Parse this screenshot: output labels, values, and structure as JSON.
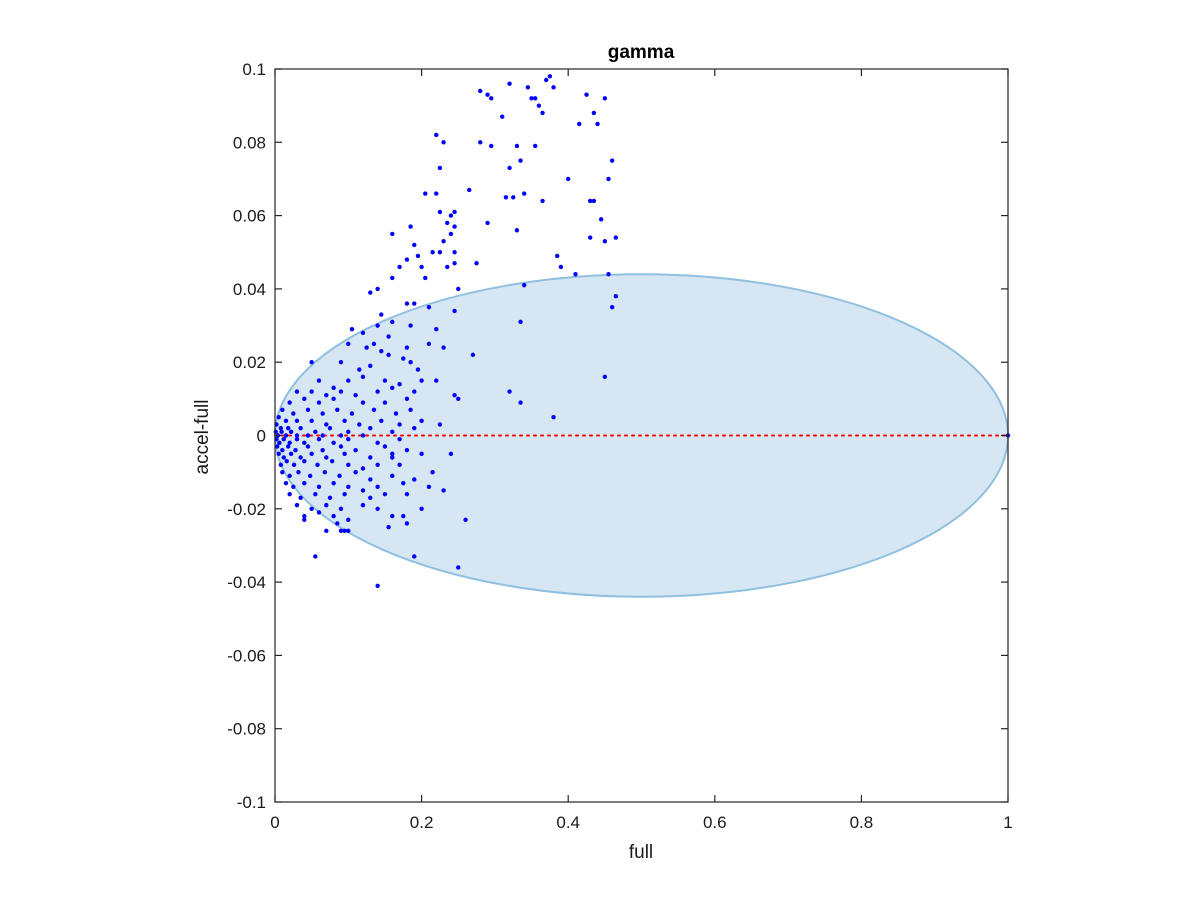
{
  "chart_data": {
    "type": "scatter",
    "title": "gamma",
    "xlabel": "full",
    "ylabel": "accel-full",
    "xlim": [
      0,
      1
    ],
    "ylim": [
      -0.1,
      0.1
    ],
    "x_ticks": [
      0,
      0.2,
      0.4,
      0.6,
      0.8,
      1
    ],
    "x_tick_labels": [
      "0",
      "0.2",
      "0.4",
      "0.6",
      "0.8",
      "1"
    ],
    "y_ticks": [
      -0.1,
      -0.08,
      -0.06,
      -0.04,
      -0.02,
      0,
      0.02,
      0.04,
      0.06,
      0.08,
      0.1
    ],
    "y_tick_labels": [
      "-0.1",
      "-0.08",
      "-0.06",
      "-0.04",
      "-0.02",
      "0",
      "0.02",
      "0.04",
      "0.06",
      "0.08",
      "0.1"
    ],
    "grid": false,
    "point_color": "#0000ff",
    "reference_line": {
      "y": 0,
      "x_range": [
        0,
        1
      ],
      "style": "dotted",
      "color": "#ff0000"
    },
    "ellipse": {
      "center_x": 0.5,
      "center_y": 0,
      "radius_x": 0.5,
      "radius_y": 0.044,
      "fill": "#d6e6f3",
      "stroke": "#8fc0e0"
    },
    "points": [
      [
        0.28,
        0.094
      ],
      [
        0.29,
        0.093
      ],
      [
        0.295,
        0.092
      ],
      [
        0.32,
        0.096
      ],
      [
        0.35,
        0.092
      ],
      [
        0.355,
        0.092
      ],
      [
        0.37,
        0.097
      ],
      [
        0.375,
        0.098
      ],
      [
        0.38,
        0.095
      ],
      [
        0.425,
        0.093
      ],
      [
        0.45,
        0.092
      ],
      [
        0.345,
        0.095
      ],
      [
        0.31,
        0.087
      ],
      [
        0.365,
        0.088
      ],
      [
        0.415,
        0.085
      ],
      [
        0.435,
        0.088
      ],
      [
        0.44,
        0.085
      ],
      [
        0.36,
        0.09
      ],
      [
        0.22,
        0.082
      ],
      [
        0.23,
        0.08
      ],
      [
        0.28,
        0.08
      ],
      [
        0.295,
        0.079
      ],
      [
        0.33,
        0.079
      ],
      [
        0.355,
        0.079
      ],
      [
        0.46,
        0.075
      ],
      [
        0.225,
        0.073
      ],
      [
        0.32,
        0.073
      ],
      [
        0.335,
        0.075
      ],
      [
        0.4,
        0.07
      ],
      [
        0.455,
        0.07
      ],
      [
        0.205,
        0.066
      ],
      [
        0.22,
        0.066
      ],
      [
        0.265,
        0.067
      ],
      [
        0.315,
        0.065
      ],
      [
        0.325,
        0.065
      ],
      [
        0.34,
        0.066
      ],
      [
        0.365,
        0.064
      ],
      [
        0.43,
        0.064
      ],
      [
        0.435,
        0.064
      ],
      [
        0.225,
        0.061
      ],
      [
        0.235,
        0.058
      ],
      [
        0.24,
        0.06
      ],
      [
        0.245,
        0.061
      ],
      [
        0.29,
        0.058
      ],
      [
        0.445,
        0.059
      ],
      [
        0.23,
        0.053
      ],
      [
        0.24,
        0.055
      ],
      [
        0.245,
        0.057
      ],
      [
        0.33,
        0.056
      ],
      [
        0.16,
        0.055
      ],
      [
        0.185,
        0.057
      ],
      [
        0.225,
        0.05
      ],
      [
        0.43,
        0.054
      ],
      [
        0.45,
        0.053
      ],
      [
        0.465,
        0.054
      ],
      [
        0.18,
        0.048
      ],
      [
        0.195,
        0.049
      ],
      [
        0.215,
        0.05
      ],
      [
        0.245,
        0.05
      ],
      [
        0.385,
        0.049
      ],
      [
        0.39,
        0.046
      ],
      [
        0.19,
        0.052
      ],
      [
        0.17,
        0.046
      ],
      [
        0.2,
        0.046
      ],
      [
        0.235,
        0.046
      ],
      [
        0.245,
        0.047
      ],
      [
        0.275,
        0.047
      ],
      [
        0.41,
        0.044
      ],
      [
        0.455,
        0.044
      ],
      [
        0.14,
        0.04
      ],
      [
        0.16,
        0.043
      ],
      [
        0.205,
        0.043
      ],
      [
        0.25,
        0.04
      ],
      [
        0.34,
        0.041
      ],
      [
        0.465,
        0.038
      ],
      [
        0.13,
        0.039
      ],
      [
        0.18,
        0.036
      ],
      [
        0.19,
        0.036
      ],
      [
        0.21,
        0.035
      ],
      [
        0.245,
        0.034
      ],
      [
        0.46,
        0.035
      ],
      [
        0.145,
        0.033
      ],
      [
        0.105,
        0.029
      ],
      [
        0.12,
        0.028
      ],
      [
        0.14,
        0.03
      ],
      [
        0.155,
        0.027
      ],
      [
        0.16,
        0.031
      ],
      [
        0.185,
        0.03
      ],
      [
        0.335,
        0.031
      ],
      [
        0.22,
        0.029
      ],
      [
        0.1,
        0.025
      ],
      [
        0.125,
        0.024
      ],
      [
        0.135,
        0.025
      ],
      [
        0.145,
        0.023
      ],
      [
        0.155,
        0.022
      ],
      [
        0.18,
        0.024
      ],
      [
        0.21,
        0.025
      ],
      [
        0.23,
        0.024
      ],
      [
        0.05,
        0.02
      ],
      [
        0.09,
        0.02
      ],
      [
        0.115,
        0.018
      ],
      [
        0.13,
        0.019
      ],
      [
        0.175,
        0.021
      ],
      [
        0.185,
        0.02
      ],
      [
        0.27,
        0.022
      ],
      [
        0.195,
        0.018
      ],
      [
        0.06,
        0.015
      ],
      [
        0.08,
        0.013
      ],
      [
        0.1,
        0.015
      ],
      [
        0.12,
        0.016
      ],
      [
        0.15,
        0.015
      ],
      [
        0.17,
        0.014
      ],
      [
        0.2,
        0.015
      ],
      [
        0.22,
        0.015
      ],
      [
        0.45,
        0.016
      ],
      [
        0.03,
        0.012
      ],
      [
        0.05,
        0.012
      ],
      [
        0.07,
        0.011
      ],
      [
        0.09,
        0.012
      ],
      [
        0.11,
        0.011
      ],
      [
        0.14,
        0.012
      ],
      [
        0.16,
        0.013
      ],
      [
        0.19,
        0.012
      ],
      [
        0.32,
        0.012
      ],
      [
        0.245,
        0.011
      ],
      [
        0.02,
        0.009
      ],
      [
        0.04,
        0.01
      ],
      [
        0.06,
        0.009
      ],
      [
        0.08,
        0.01
      ],
      [
        0.12,
        0.009
      ],
      [
        0.15,
        0.009
      ],
      [
        0.18,
        0.01
      ],
      [
        0.335,
        0.009
      ],
      [
        0.25,
        0.01
      ],
      [
        0.01,
        0.007
      ],
      [
        0.025,
        0.006
      ],
      [
        0.045,
        0.007
      ],
      [
        0.065,
        0.006
      ],
      [
        0.085,
        0.007
      ],
      [
        0.105,
        0.006
      ],
      [
        0.135,
        0.007
      ],
      [
        0.165,
        0.006
      ],
      [
        0.185,
        0.007
      ],
      [
        0.38,
        0.005
      ],
      [
        0.2,
        0.004
      ],
      [
        0.005,
        0.005
      ],
      [
        0.015,
        0.004
      ],
      [
        0.03,
        0.004
      ],
      [
        0.05,
        0.004
      ],
      [
        0.07,
        0.003
      ],
      [
        0.095,
        0.004
      ],
      [
        0.115,
        0.003
      ],
      [
        0.145,
        0.004
      ],
      [
        0.17,
        0.003
      ],
      [
        0.225,
        0.003
      ],
      [
        0.002,
        0.003
      ],
      [
        0.008,
        0.002
      ],
      [
        0.018,
        0.002
      ],
      [
        0.035,
        0.002
      ],
      [
        0.055,
        0.001
      ],
      [
        0.075,
        0.002
      ],
      [
        0.1,
        0.001
      ],
      [
        0.13,
        0.002
      ],
      [
        0.16,
        0.001
      ],
      [
        0.19,
        0.002
      ],
      [
        0.001,
        0.001
      ],
      [
        0.004,
        0.0
      ],
      [
        0.009,
        0.001
      ],
      [
        0.015,
        0.0
      ],
      [
        0.022,
        0.001
      ],
      [
        0.03,
        0.0
      ],
      [
        0.045,
        0.0
      ],
      [
        0.065,
        0.0
      ],
      [
        0.09,
        0.0
      ],
      [
        0.12,
        0.0
      ],
      [
        1.0,
        0.0
      ],
      [
        0.002,
        -0.001
      ],
      [
        0.006,
        -0.002
      ],
      [
        0.012,
        -0.001
      ],
      [
        0.02,
        -0.002
      ],
      [
        0.03,
        -0.001
      ],
      [
        0.04,
        -0.002
      ],
      [
        0.06,
        -0.001
      ],
      [
        0.08,
        -0.002
      ],
      [
        0.1,
        -0.001
      ],
      [
        0.14,
        -0.002
      ],
      [
        0.17,
        -0.001
      ],
      [
        0.003,
        -0.003
      ],
      [
        0.01,
        -0.004
      ],
      [
        0.018,
        -0.003
      ],
      [
        0.028,
        -0.004
      ],
      [
        0.045,
        -0.003
      ],
      [
        0.065,
        -0.004
      ],
      [
        0.09,
        -0.003
      ],
      [
        0.11,
        -0.004
      ],
      [
        0.15,
        -0.003
      ],
      [
        0.18,
        -0.004
      ],
      [
        0.005,
        -0.005
      ],
      [
        0.012,
        -0.006
      ],
      [
        0.022,
        -0.005
      ],
      [
        0.035,
        -0.006
      ],
      [
        0.05,
        -0.005
      ],
      [
        0.07,
        -0.006
      ],
      [
        0.095,
        -0.005
      ],
      [
        0.13,
        -0.006
      ],
      [
        0.16,
        -0.005
      ],
      [
        0.2,
        -0.005
      ],
      [
        0.24,
        -0.005
      ],
      [
        0.008,
        -0.008
      ],
      [
        0.016,
        -0.007
      ],
      [
        0.026,
        -0.008
      ],
      [
        0.04,
        -0.007
      ],
      [
        0.058,
        -0.008
      ],
      [
        0.078,
        -0.007
      ],
      [
        0.1,
        -0.008
      ],
      [
        0.12,
        -0.009
      ],
      [
        0.14,
        -0.008
      ],
      [
        0.17,
        -0.008
      ],
      [
        0.01,
        -0.01
      ],
      [
        0.02,
        -0.011
      ],
      [
        0.032,
        -0.01
      ],
      [
        0.048,
        -0.011
      ],
      [
        0.068,
        -0.01
      ],
      [
        0.088,
        -0.011
      ],
      [
        0.11,
        -0.01
      ],
      [
        0.13,
        -0.012
      ],
      [
        0.16,
        -0.011
      ],
      [
        0.19,
        -0.012
      ],
      [
        0.015,
        -0.013
      ],
      [
        0.025,
        -0.014
      ],
      [
        0.04,
        -0.013
      ],
      [
        0.06,
        -0.014
      ],
      [
        0.08,
        -0.013
      ],
      [
        0.1,
        -0.014
      ],
      [
        0.12,
        -0.015
      ],
      [
        0.14,
        -0.014
      ],
      [
        0.175,
        -0.013
      ],
      [
        0.21,
        -0.014
      ],
      [
        0.02,
        -0.016
      ],
      [
        0.035,
        -0.017
      ],
      [
        0.055,
        -0.016
      ],
      [
        0.075,
        -0.017
      ],
      [
        0.095,
        -0.016
      ],
      [
        0.13,
        -0.017
      ],
      [
        0.15,
        -0.016
      ],
      [
        0.18,
        -0.016
      ],
      [
        0.03,
        -0.019
      ],
      [
        0.05,
        -0.02
      ],
      [
        0.07,
        -0.019
      ],
      [
        0.09,
        -0.02
      ],
      [
        0.12,
        -0.019
      ],
      [
        0.14,
        -0.02
      ],
      [
        0.2,
        -0.02
      ],
      [
        0.04,
        -0.022
      ],
      [
        0.06,
        -0.021
      ],
      [
        0.08,
        -0.022
      ],
      [
        0.1,
        -0.023
      ],
      [
        0.16,
        -0.022
      ],
      [
        0.175,
        -0.022
      ],
      [
        0.04,
        -0.023
      ],
      [
        0.085,
        -0.024
      ],
      [
        0.095,
        -0.026
      ],
      [
        0.1,
        -0.026
      ],
      [
        0.155,
        -0.025
      ],
      [
        0.18,
        -0.024
      ],
      [
        0.26,
        -0.023
      ],
      [
        0.09,
        -0.026
      ],
      [
        0.07,
        -0.026
      ],
      [
        0.19,
        -0.033
      ],
      [
        0.055,
        -0.033
      ],
      [
        0.25,
        -0.036
      ],
      [
        0.14,
        -0.041
      ],
      [
        0.23,
        -0.015
      ],
      [
        0.215,
        -0.01
      ],
      [
        0.16,
        -0.006
      ]
    ]
  }
}
